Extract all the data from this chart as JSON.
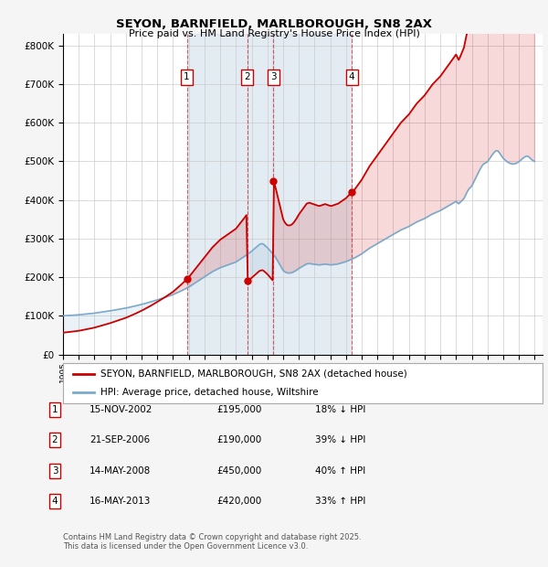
{
  "title": "SEYON, BARNFIELD, MARLBOROUGH, SN8 2AX",
  "subtitle": "Price paid vs. HM Land Registry's House Price Index (HPI)",
  "ylabel_ticks": [
    "£0",
    "£100K",
    "£200K",
    "£300K",
    "£400K",
    "£500K",
    "£600K",
    "£700K",
    "£800K"
  ],
  "ytick_values": [
    0,
    100000,
    200000,
    300000,
    400000,
    500000,
    600000,
    700000,
    800000
  ],
  "ylim": [
    0,
    830000
  ],
  "xlim_start": 1995.0,
  "xlim_end": 2025.5,
  "sale_color": "#cc0000",
  "hpi_color": "#7aaacc",
  "vline_color": "#cc0000",
  "shade_color": "#c8d8e8",
  "transactions": [
    {
      "num": 1,
      "date": "15-NOV-2002",
      "year": 2002.876,
      "price": 195000,
      "pct": "18%",
      "dir": "↓"
    },
    {
      "num": 2,
      "date": "21-SEP-2006",
      "year": 2006.719,
      "price": 190000,
      "pct": "39%",
      "dir": "↓"
    },
    {
      "num": 3,
      "date": "14-MAY-2008",
      "year": 2008.37,
      "price": 450000,
      "pct": "40%",
      "dir": "↑"
    },
    {
      "num": 4,
      "date": "16-MAY-2013",
      "year": 2013.37,
      "price": 420000,
      "pct": "33%",
      "dir": "↑"
    }
  ],
  "legend_label_red": "SEYON, BARNFIELD, MARLBOROUGH, SN8 2AX (detached house)",
  "legend_label_blue": "HPI: Average price, detached house, Wiltshire",
  "footnote": "Contains HM Land Registry data © Crown copyright and database right 2025.\nThis data is licensed under the Open Government Licence v3.0.",
  "plot_bg_color": "#ffffff",
  "outer_bg_color": "#f5f5f5",
  "grid_color": "#cccccc",
  "hpi_index": {
    "1995.0": 59.0,
    "1995.083": 59.4,
    "1995.167": 59.8,
    "1995.25": 60.2,
    "1995.333": 60.6,
    "1995.417": 61.0,
    "1995.5": 61.4,
    "1995.583": 61.9,
    "1995.667": 62.3,
    "1995.75": 62.8,
    "1995.833": 63.2,
    "1995.917": 63.7,
    "1996.0": 64.1,
    "1996.083": 64.8,
    "1996.167": 65.5,
    "1996.25": 66.2,
    "1996.333": 66.9,
    "1996.417": 67.6,
    "1996.5": 68.3,
    "1996.583": 69.1,
    "1996.667": 69.8,
    "1996.75": 70.5,
    "1996.833": 71.3,
    "1996.917": 72.0,
    "1997.0": 72.8,
    "1997.083": 73.8,
    "1997.167": 74.8,
    "1997.25": 75.8,
    "1997.333": 76.8,
    "1997.417": 77.8,
    "1997.5": 78.8,
    "1997.583": 79.9,
    "1997.667": 80.9,
    "1997.75": 81.9,
    "1997.833": 83.0,
    "1997.917": 84.0,
    "1998.0": 85.0,
    "1998.083": 86.2,
    "1998.167": 87.4,
    "1998.25": 88.6,
    "1998.333": 89.8,
    "1998.417": 91.0,
    "1998.5": 92.2,
    "1998.583": 93.5,
    "1998.667": 94.7,
    "1998.75": 95.9,
    "1998.833": 97.1,
    "1998.917": 98.3,
    "1999.0": 99.6,
    "1999.083": 101.1,
    "1999.167": 102.6,
    "1999.25": 104.1,
    "1999.333": 105.6,
    "1999.417": 107.1,
    "1999.5": 108.6,
    "1999.583": 110.3,
    "1999.667": 112.0,
    "1999.75": 113.7,
    "1999.833": 115.4,
    "1999.917": 117.1,
    "2000.0": 118.8,
    "2000.083": 120.7,
    "2000.167": 122.6,
    "2000.25": 124.5,
    "2000.333": 126.4,
    "2000.417": 128.3,
    "2000.5": 130.2,
    "2000.583": 132.3,
    "2000.667": 134.4,
    "2000.75": 136.5,
    "2000.833": 138.6,
    "2000.917": 140.7,
    "2001.0": 142.8,
    "2001.083": 145.0,
    "2001.167": 147.2,
    "2001.25": 149.4,
    "2001.333": 151.6,
    "2001.417": 153.8,
    "2001.5": 156.0,
    "2001.583": 158.4,
    "2001.667": 160.8,
    "2001.75": 163.2,
    "2001.833": 165.6,
    "2001.917": 168.0,
    "2002.0": 170.4,
    "2002.083": 173.5,
    "2002.167": 176.6,
    "2002.25": 179.7,
    "2002.333": 182.8,
    "2002.417": 185.9,
    "2002.5": 189.0,
    "2002.583": 192.5,
    "2002.667": 196.0,
    "2002.75": 199.5,
    "2002.833": 203.0,
    "2002.917": 206.5,
    "2003.0": 210.0,
    "2003.083": 214.5,
    "2003.167": 219.0,
    "2003.25": 223.5,
    "2003.333": 228.0,
    "2003.417": 232.5,
    "2003.5": 237.0,
    "2003.583": 241.5,
    "2003.667": 246.0,
    "2003.75": 250.5,
    "2003.833": 255.0,
    "2003.917": 259.5,
    "2004.0": 264.0,
    "2004.083": 268.5,
    "2004.167": 273.0,
    "2004.25": 277.5,
    "2004.333": 282.0,
    "2004.417": 286.5,
    "2004.5": 291.0,
    "2004.583": 294.5,
    "2004.667": 298.0,
    "2004.75": 301.5,
    "2004.833": 305.0,
    "2004.917": 308.5,
    "2005.0": 312.0,
    "2005.083": 314.5,
    "2005.167": 317.0,
    "2005.25": 319.5,
    "2005.333": 322.0,
    "2005.417": 324.5,
    "2005.5": 327.0,
    "2005.583": 329.5,
    "2005.667": 332.0,
    "2005.75": 334.5,
    "2005.833": 337.0,
    "2005.917": 339.5,
    "2006.0": 342.0,
    "2006.083": 346.5,
    "2006.167": 351.0,
    "2006.25": 355.5,
    "2006.333": 360.0,
    "2006.417": 364.5,
    "2006.5": 369.0,
    "2006.583": 374.0,
    "2006.667": 379.0,
    "2006.75": 384.0,
    "2006.833": 389.0,
    "2006.917": 394.0,
    "2007.0": 399.0,
    "2007.083": 405.0,
    "2007.167": 411.0,
    "2007.25": 417.0,
    "2007.333": 423.0,
    "2007.417": 429.0,
    "2007.5": 435.0,
    "2007.583": 437.0,
    "2007.667": 439.0,
    "2007.75": 436.0,
    "2007.833": 430.0,
    "2007.917": 424.0,
    "2008.0": 418.0,
    "2008.083": 410.0,
    "2008.167": 402.0,
    "2008.25": 394.0,
    "2008.333": 386.0,
    "2008.417": 378.0,
    "2008.5": 370.0,
    "2008.583": 358.0,
    "2008.667": 346.0,
    "2008.75": 334.0,
    "2008.833": 322.0,
    "2008.917": 310.0,
    "2009.0": 298.0,
    "2009.083": 292.0,
    "2009.167": 288.0,
    "2009.25": 285.0,
    "2009.333": 284.0,
    "2009.417": 284.0,
    "2009.5": 285.0,
    "2009.583": 287.0,
    "2009.667": 290.0,
    "2009.75": 294.0,
    "2009.833": 298.0,
    "2009.917": 303.0,
    "2010.0": 308.0,
    "2010.083": 312.0,
    "2010.167": 316.0,
    "2010.25": 320.0,
    "2010.333": 324.0,
    "2010.417": 328.0,
    "2010.5": 332.0,
    "2010.583": 333.0,
    "2010.667": 334.0,
    "2010.75": 333.0,
    "2010.833": 332.0,
    "2010.917": 331.0,
    "2011.0": 330.0,
    "2011.083": 329.0,
    "2011.167": 328.0,
    "2011.25": 327.0,
    "2011.333": 327.0,
    "2011.417": 328.0,
    "2011.5": 329.0,
    "2011.583": 330.0,
    "2011.667": 331.0,
    "2011.75": 330.0,
    "2011.833": 329.0,
    "2011.917": 328.0,
    "2012.0": 327.0,
    "2012.083": 327.0,
    "2012.167": 328.0,
    "2012.25": 329.0,
    "2012.333": 330.0,
    "2012.417": 331.0,
    "2012.5": 332.0,
    "2012.583": 334.0,
    "2012.667": 336.0,
    "2012.75": 338.0,
    "2012.833": 340.0,
    "2012.917": 342.0,
    "2013.0": 344.0,
    "2013.083": 347.0,
    "2013.167": 350.0,
    "2013.25": 353.0,
    "2013.333": 356.0,
    "2013.417": 359.0,
    "2013.5": 362.0,
    "2013.583": 365.0,
    "2013.667": 369.0,
    "2013.75": 373.0,
    "2013.833": 377.0,
    "2013.917": 381.0,
    "2014.0": 385.0,
    "2014.083": 390.0,
    "2014.167": 395.0,
    "2014.25": 400.0,
    "2014.333": 405.0,
    "2014.417": 410.0,
    "2014.5": 415.0,
    "2014.583": 419.0,
    "2014.667": 423.0,
    "2014.75": 427.0,
    "2014.833": 431.0,
    "2014.917": 435.0,
    "2015.0": 439.0,
    "2015.083": 443.0,
    "2015.167": 447.0,
    "2015.25": 451.0,
    "2015.333": 455.0,
    "2015.417": 459.0,
    "2015.5": 463.0,
    "2015.583": 467.0,
    "2015.667": 471.0,
    "2015.75": 475.0,
    "2015.833": 479.0,
    "2015.917": 483.0,
    "2016.0": 487.0,
    "2016.083": 491.0,
    "2016.167": 495.0,
    "2016.25": 499.0,
    "2016.333": 503.0,
    "2016.417": 507.0,
    "2016.5": 511.0,
    "2016.583": 514.0,
    "2016.667": 517.0,
    "2016.75": 520.0,
    "2016.833": 523.0,
    "2016.917": 526.0,
    "2017.0": 529.0,
    "2017.083": 533.0,
    "2017.167": 537.0,
    "2017.25": 541.0,
    "2017.333": 545.0,
    "2017.417": 549.0,
    "2017.5": 553.0,
    "2017.583": 556.0,
    "2017.667": 559.0,
    "2017.75": 562.0,
    "2017.833": 565.0,
    "2017.917": 568.0,
    "2018.0": 571.0,
    "2018.083": 575.0,
    "2018.167": 579.0,
    "2018.25": 583.0,
    "2018.333": 587.0,
    "2018.417": 591.0,
    "2018.5": 595.0,
    "2018.583": 598.0,
    "2018.667": 601.0,
    "2018.75": 604.0,
    "2018.833": 607.0,
    "2018.917": 610.0,
    "2019.0": 613.0,
    "2019.083": 617.0,
    "2019.167": 621.0,
    "2019.25": 625.0,
    "2019.333": 629.0,
    "2019.417": 633.0,
    "2019.5": 637.0,
    "2019.583": 641.0,
    "2019.667": 645.0,
    "2019.75": 649.0,
    "2019.833": 653.0,
    "2019.917": 657.0,
    "2020.0": 661.0,
    "2020.083": 655.0,
    "2020.167": 649.0,
    "2020.25": 655.0,
    "2020.333": 662.0,
    "2020.417": 669.0,
    "2020.5": 676.0,
    "2020.583": 690.0,
    "2020.667": 704.0,
    "2020.75": 718.0,
    "2020.833": 728.0,
    "2020.917": 735.0,
    "2021.0": 742.0,
    "2021.083": 756.0,
    "2021.167": 770.0,
    "2021.25": 784.0,
    "2021.333": 798.0,
    "2021.417": 812.0,
    "2021.5": 826.0,
    "2021.583": 838.0,
    "2021.667": 850.0,
    "2021.75": 858.0,
    "2021.833": 862.0,
    "2021.917": 866.0,
    "2022.0": 870.0,
    "2022.083": 880.0,
    "2022.167": 890.0,
    "2022.25": 900.0,
    "2022.333": 910.0,
    "2022.417": 918.0,
    "2022.5": 926.0,
    "2022.583": 928.0,
    "2022.667": 926.0,
    "2022.75": 918.0,
    "2022.833": 908.0,
    "2022.917": 898.0,
    "2023.0": 888.0,
    "2023.083": 882.0,
    "2023.167": 876.0,
    "2023.25": 870.0,
    "2023.333": 866.0,
    "2023.417": 862.0,
    "2023.5": 860.0,
    "2023.583": 858.0,
    "2023.667": 858.0,
    "2023.75": 860.0,
    "2023.833": 862.0,
    "2023.917": 866.0,
    "2024.0": 870.0,
    "2024.083": 876.0,
    "2024.167": 882.0,
    "2024.25": 888.0,
    "2024.333": 893.0,
    "2024.417": 898.0,
    "2024.5": 900.0,
    "2024.583": 898.0,
    "2024.667": 893.0,
    "2024.75": 886.0,
    "2024.833": 880.0,
    "2024.917": 875.0,
    "2025.0": 872.0
  }
}
